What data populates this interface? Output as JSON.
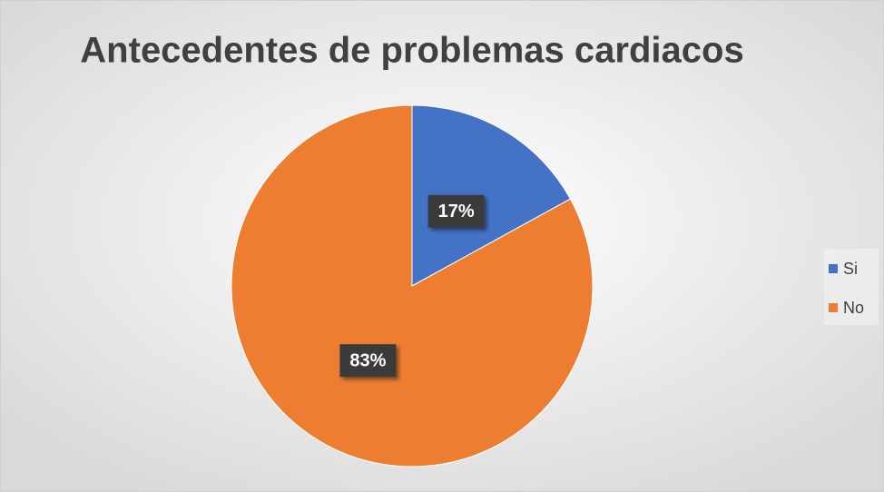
{
  "chart_data": {
    "type": "pie",
    "title": "Antecedentes de problemas cardiacos",
    "categories": [
      "Si",
      "No"
    ],
    "values": [
      17,
      83
    ],
    "value_labels": [
      "17%",
      "83%"
    ],
    "colors": [
      "#4472c4",
      "#ed7d31"
    ],
    "legend": "right"
  }
}
